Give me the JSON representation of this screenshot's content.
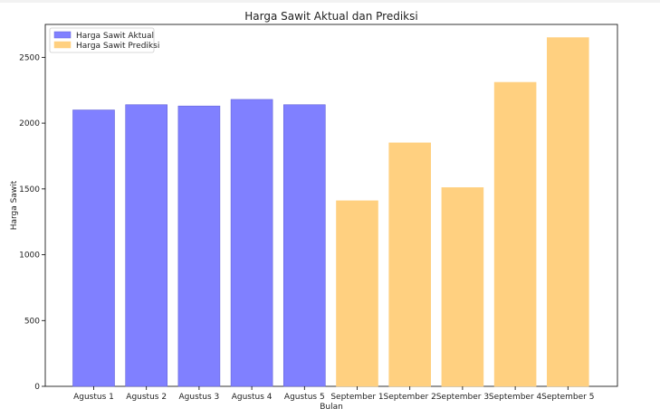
{
  "chart_data": {
    "type": "bar",
    "title": "Harga Sawit Aktual dan Prediksi",
    "xlabel": "Bulan",
    "ylabel": "Harga Sawit",
    "ylim": [
      0,
      2750
    ],
    "yticks": [
      0,
      500,
      1000,
      1500,
      2000,
      2500
    ],
    "grid": false,
    "legend_placement": "top-left",
    "categories": [
      "Agustus 1",
      "Agustus 2",
      "Agustus 3",
      "Agustus 4",
      "Agustus 5",
      "September 1",
      "September 2",
      "September 3",
      "September 4",
      "September 5"
    ],
    "series": [
      {
        "name": "Harga Sawit Aktual",
        "color": "#8080ff",
        "edge": "#6464d8",
        "values": [
          2100,
          2140,
          2130,
          2180,
          2140,
          null,
          null,
          null,
          null,
          null
        ]
      },
      {
        "name": "Harga Sawit Prediksi",
        "color": "#ffd080",
        "edge": "#ffd080",
        "values": [
          null,
          null,
          null,
          null,
          null,
          1410,
          1850,
          1510,
          2310,
          2650
        ]
      }
    ]
  }
}
